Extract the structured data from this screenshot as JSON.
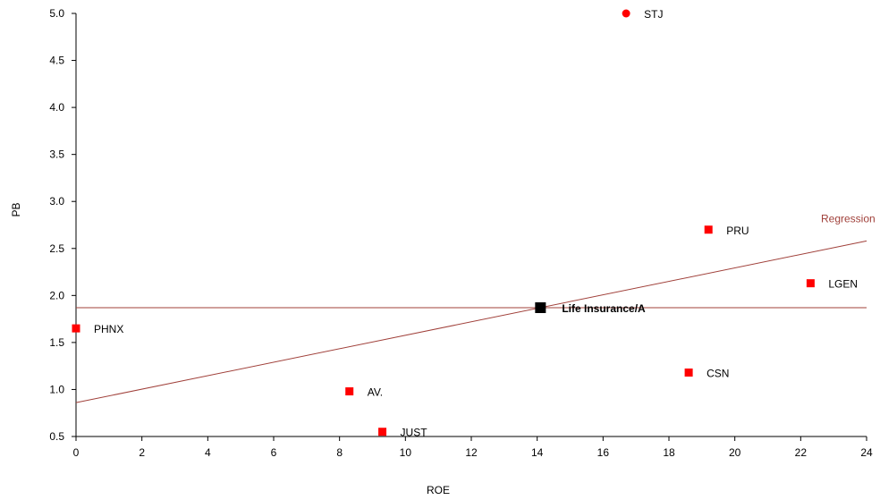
{
  "chart_data": {
    "type": "scatter",
    "title": "",
    "xlabel": "ROE",
    "ylabel": "PB",
    "xlim": [
      0,
      24
    ],
    "ylim": [
      0.5,
      5.0
    ],
    "xticks": [
      "0",
      "2",
      "4",
      "6",
      "8",
      "10",
      "12",
      "14",
      "16",
      "18",
      "20",
      "22",
      "24"
    ],
    "yticks": [
      "0.5",
      "1.0",
      "1.5",
      "2.0",
      "2.5",
      "3.0",
      "3.5",
      "4.0",
      "4.5",
      "5.0"
    ],
    "grid": false,
    "points": [
      {
        "label": "STJ",
        "x": 16.7,
        "y": 5.0,
        "marker": "circle",
        "color": "#ff0000"
      },
      {
        "label": "PRU",
        "x": 19.2,
        "y": 2.7,
        "marker": "square",
        "color": "#ff0000"
      },
      {
        "label": "LGEN",
        "x": 22.3,
        "y": 2.13,
        "marker": "square",
        "color": "#ff0000"
      },
      {
        "label": "Life Insurance/A",
        "x": 14.1,
        "y": 1.87,
        "marker": "square-large",
        "color": "#000000",
        "bold": true
      },
      {
        "label": "PHNX",
        "x": 0.0,
        "y": 1.65,
        "marker": "square",
        "color": "#ff0000"
      },
      {
        "label": "CSN",
        "x": 18.6,
        "y": 1.18,
        "marker": "square",
        "color": "#ff0000"
      },
      {
        "label": "AV.",
        "x": 8.3,
        "y": 0.98,
        "marker": "square",
        "color": "#ff0000"
      },
      {
        "label": "JUST",
        "x": 9.3,
        "y": 0.55,
        "marker": "square",
        "color": "#ff0000"
      }
    ],
    "regression": {
      "label": "Regression",
      "x0": 0,
      "y0": 0.86,
      "x1": 24,
      "y1": 2.58,
      "color": "#a0403a"
    },
    "reference_line": {
      "y": 1.87,
      "color": "#a0403a"
    }
  }
}
